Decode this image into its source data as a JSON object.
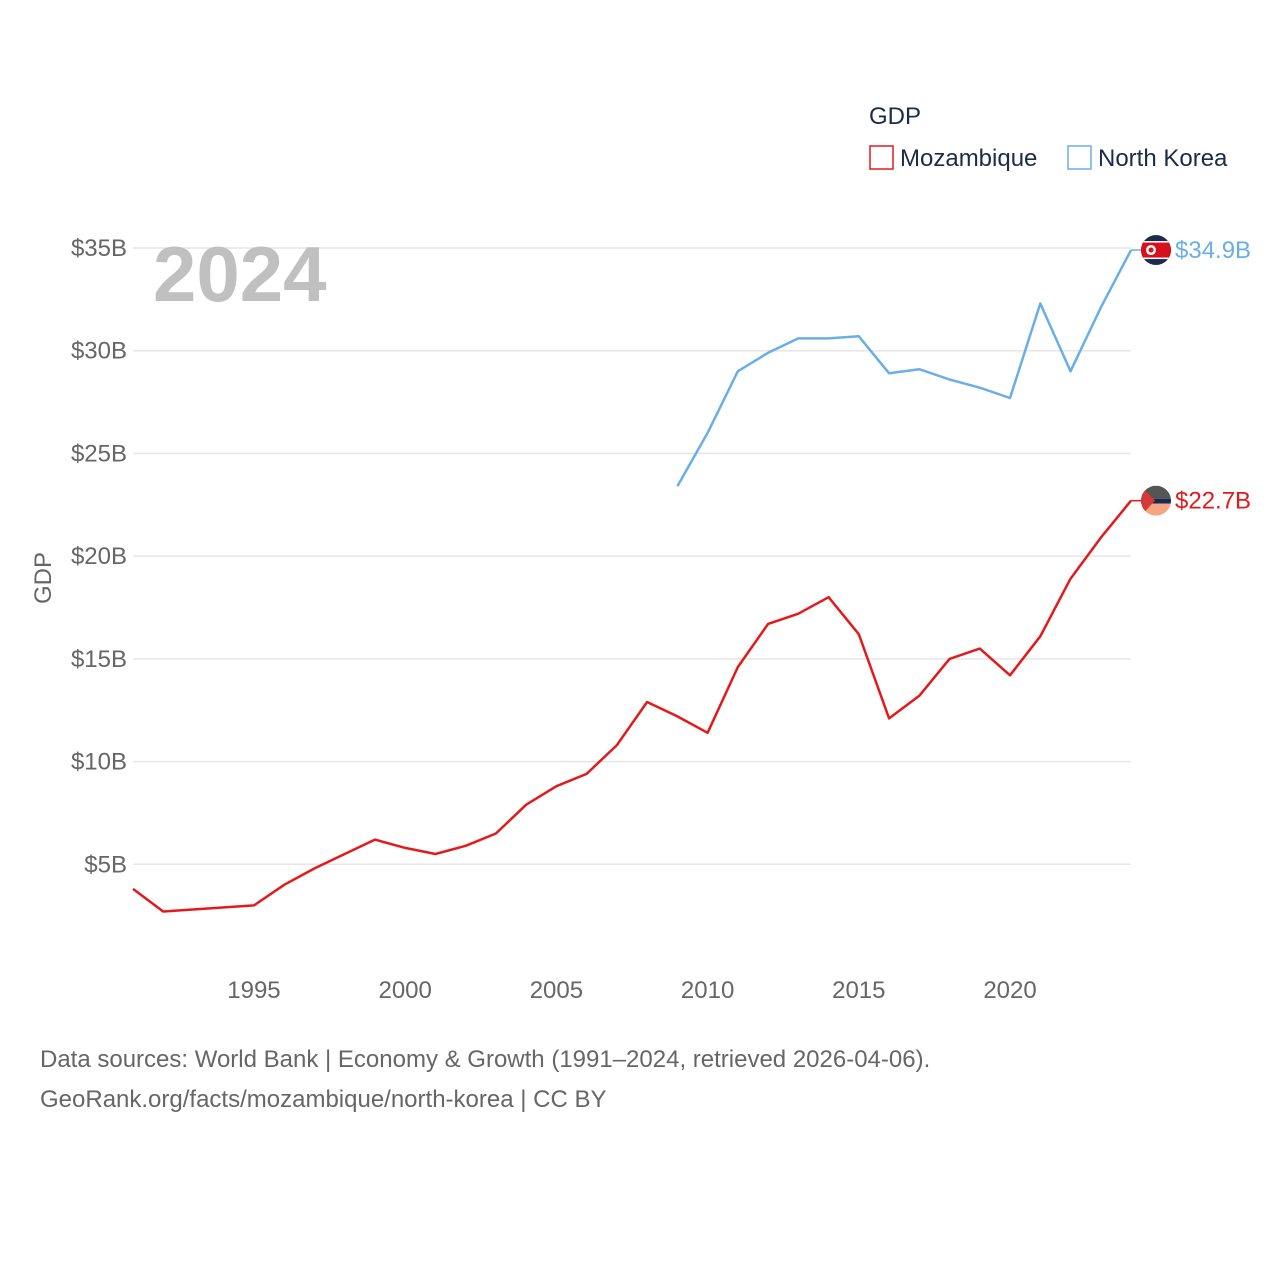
{
  "chart_data": {
    "type": "line",
    "title": "",
    "xlabel": "",
    "ylabel": "GDP",
    "year_label": "2024",
    "xlim": [
      1991,
      2024
    ],
    "ylim": [
      0,
      35
    ],
    "x_ticks": [
      1995,
      2000,
      2005,
      2010,
      2015,
      2020
    ],
    "x_tick_labels": [
      "1995",
      "2000",
      "2005",
      "2010",
      "2015",
      "2020"
    ],
    "y_ticks": [
      5,
      10,
      15,
      20,
      25,
      30,
      35
    ],
    "y_tick_labels": [
      "$5B",
      "$10B",
      "$15B",
      "$20B",
      "$25B",
      "$30B",
      "$35B"
    ],
    "legend": {
      "title": "GDP",
      "position": "top-right"
    },
    "series": [
      {
        "name": "Mozambique",
        "color": "#e31a1c",
        "end_label": "$22.7B",
        "flag_colors": [
          "#555555",
          "#1c2b4a",
          "#f4a582"
        ],
        "x": [
          1991,
          1992,
          1995,
          1996,
          1997,
          1998,
          1999,
          2000,
          2001,
          2002,
          2003,
          2004,
          2005,
          2006,
          2007,
          2008,
          2009,
          2010,
          2011,
          2012,
          2013,
          2014,
          2015,
          2016,
          2017,
          2018,
          2019,
          2020,
          2021,
          2022,
          2023,
          2024
        ],
        "values": [
          3.8,
          2.7,
          3.0,
          4.0,
          4.8,
          5.5,
          6.2,
          5.8,
          5.5,
          5.9,
          6.5,
          7.9,
          8.8,
          9.4,
          10.8,
          12.9,
          12.2,
          11.4,
          14.6,
          16.7,
          17.2,
          18.0,
          16.2,
          12.1,
          13.2,
          15.0,
          15.5,
          14.2,
          16.1,
          18.9,
          20.9,
          22.7
        ]
      },
      {
        "name": "North Korea",
        "color": "#6aaee8",
        "end_label": "$34.9B",
        "flag_colors": [
          "#1c2b4a",
          "#d4111c",
          "#ffffff"
        ],
        "x": [
          2009,
          2010,
          2011,
          2012,
          2013,
          2014,
          2015,
          2016,
          2017,
          2018,
          2019,
          2020,
          2021,
          2022,
          2023,
          2024
        ],
        "values": [
          23.4,
          26.0,
          29.0,
          29.9,
          30.6,
          30.6,
          30.7,
          28.9,
          29.1,
          28.6,
          28.2,
          27.7,
          32.3,
          29.0,
          32.1,
          34.9
        ]
      }
    ]
  },
  "footer": {
    "line1": "Data sources: World Bank | Economy & Growth (1991–2024, retrieved 2026-04-06).",
    "line2": "GeoRank.org/facts/mozambique/north-korea | CC BY"
  }
}
